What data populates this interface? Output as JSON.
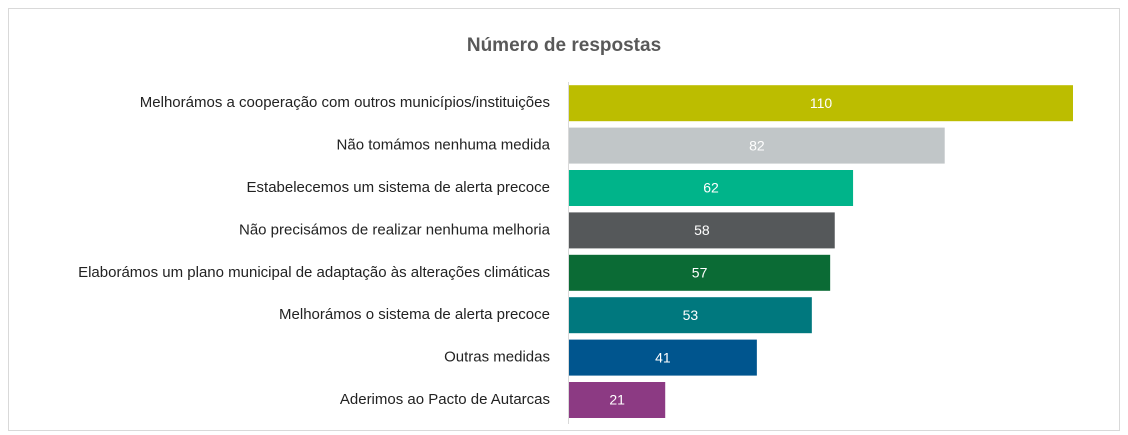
{
  "chart_data": {
    "type": "hbar",
    "title": "Número de respostas",
    "categories": [
      "Melhorámos a cooperação com outros municípios/instituições",
      "Não tomámos nenhuma medida",
      "Estabelecemos um sistema de alerta precoce",
      "Não precisámos de realizar nenhuma melhoria",
      "Elaborámos um plano municipal de adaptação às alterações climáticas",
      "Melhorámos o sistema de alerta precoce",
      "Outras medidas",
      "Aderimos ao Pacto de Autarcas"
    ],
    "values": [
      110,
      82,
      62,
      58,
      57,
      53,
      41,
      21
    ],
    "colors": [
      "#bcbd00",
      "#c1c6c8",
      "#00b48a",
      "#55585a",
      "#0b6b35",
      "#00787e",
      "#00558e",
      "#8c3a83"
    ]
  }
}
